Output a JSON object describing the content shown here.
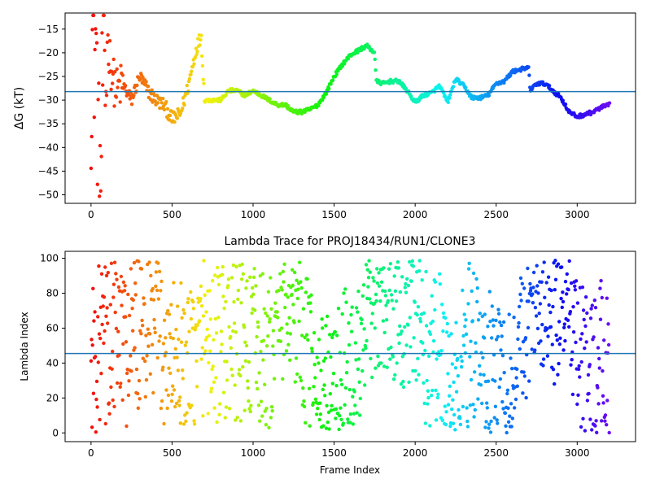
{
  "chart_data": [
    {
      "type": "scatter",
      "title": "",
      "xlabel": "",
      "ylabel": "ΔG (kT)",
      "xlim": [
        -160,
        3360
      ],
      "ylim": [
        -51.8,
        -11.6
      ],
      "xticks": [
        0,
        500,
        1000,
        1500,
        2000,
        2500,
        3000
      ],
      "yticks": [
        -50,
        -45,
        -40,
        -35,
        -30,
        -25,
        -20,
        -15
      ],
      "hline": {
        "y": -28.2,
        "color": "#1f77b4"
      },
      "colormap": "rainbow (red at frame 0 → violet at last frame)",
      "grid": false,
      "series": [
        {
          "x": [
            0,
            10,
            20,
            30,
            40,
            50,
            60,
            70,
            80,
            90,
            100,
            120,
            140,
            160,
            180,
            200,
            250,
            300,
            350,
            400,
            450,
            500,
            550,
            600,
            650,
            680,
            700,
            750,
            800,
            850,
            900,
            950,
            1000,
            1050,
            1100,
            1150,
            1200,
            1250,
            1300,
            1350,
            1400,
            1450,
            1500,
            1550,
            1600,
            1650,
            1700,
            1750,
            1760,
            1800,
            1850,
            1900,
            1950,
            2000,
            2050,
            2100,
            2150,
            2180,
            2200,
            2250,
            2300,
            2350,
            2400,
            2450,
            2500,
            2550,
            2600,
            2650,
            2700,
            2710,
            2750,
            2800,
            2850,
            2900,
            2950,
            3000,
            3050,
            3100,
            3150,
            3200
          ],
          "y": [
            -30,
            -13,
            -22,
            -15,
            -34,
            -42,
            -48,
            -25,
            -20,
            -31,
            -17,
            -22,
            -26,
            -28,
            -27,
            -27,
            -30,
            -25,
            -28,
            -30,
            -31,
            -34,
            -33,
            -27,
            -19,
            -16.5,
            -30,
            -30,
            -30,
            -28,
            -28,
            -29,
            -28,
            -29,
            -30,
            -31,
            -31,
            -32.5,
            -32.5,
            -32,
            -31,
            -28.5,
            -25,
            -22.5,
            -20.5,
            -19.5,
            -18.5,
            -20,
            -26,
            -26.5,
            -26,
            -26,
            -28,
            -30.5,
            -29,
            -28.5,
            -27,
            -29,
            -30.5,
            -25.5,
            -27,
            -29.5,
            -29.5,
            -29,
            -26.5,
            -26,
            -24,
            -23.5,
            -23.2,
            -28,
            -26.5,
            -26.5,
            -28,
            -29.5,
            -32.5,
            -33.5,
            -33,
            -32.5,
            -31.5,
            -31
          ]
        }
      ]
    },
    {
      "type": "scatter",
      "title": "Lambda Trace for PROJ18434/RUN1/CLONE3",
      "xlabel": "Frame Index",
      "ylabel": "Lambda Index",
      "xlim": [
        -160,
        3360
      ],
      "ylim": [
        -5,
        104
      ],
      "xticks": [
        0,
        500,
        1000,
        1500,
        2000,
        2500,
        3000
      ],
      "yticks": [
        0,
        20,
        40,
        60,
        80,
        100
      ],
      "hline": {
        "y": 45.5,
        "color": "#1f77b4"
      },
      "colormap": "rainbow (red at frame 0 → violet at last frame)",
      "grid": false,
      "series": [
        {
          "x": [
            0,
            50,
            100,
            150,
            200,
            250,
            300,
            350,
            400,
            450,
            500,
            550,
            600,
            650,
            700,
            750,
            800,
            850,
            900,
            950,
            1000,
            1050,
            1100,
            1150,
            1200,
            1250,
            1300,
            1350,
            1400,
            1450,
            1500,
            1550,
            1600,
            1650,
            1700,
            1750,
            1800,
            1850,
            1900,
            1950,
            2000,
            2050,
            2100,
            2150,
            2200,
            2250,
            2300,
            2350,
            2400,
            2450,
            2500,
            2550,
            2600,
            2650,
            2700,
            2750,
            2800,
            2850,
            2900,
            2950,
            3000,
            3050,
            3100,
            3150,
            3200
          ],
          "y": [
            40,
            50,
            50,
            55,
            50,
            50,
            60,
            55,
            60,
            50,
            45,
            40,
            30,
            45,
            60,
            50,
            50,
            50,
            50,
            55,
            50,
            45,
            40,
            75,
            80,
            75,
            65,
            35,
            25,
            20,
            25,
            35,
            35,
            35,
            65,
            80,
            80,
            80,
            75,
            70,
            60,
            50,
            40,
            50,
            35,
            20,
            40,
            60,
            40,
            35,
            35,
            25,
            25,
            50,
            75,
            80,
            80,
            70,
            80,
            90,
            40,
            35,
            35,
            40,
            40
          ]
        }
      ]
    }
  ]
}
